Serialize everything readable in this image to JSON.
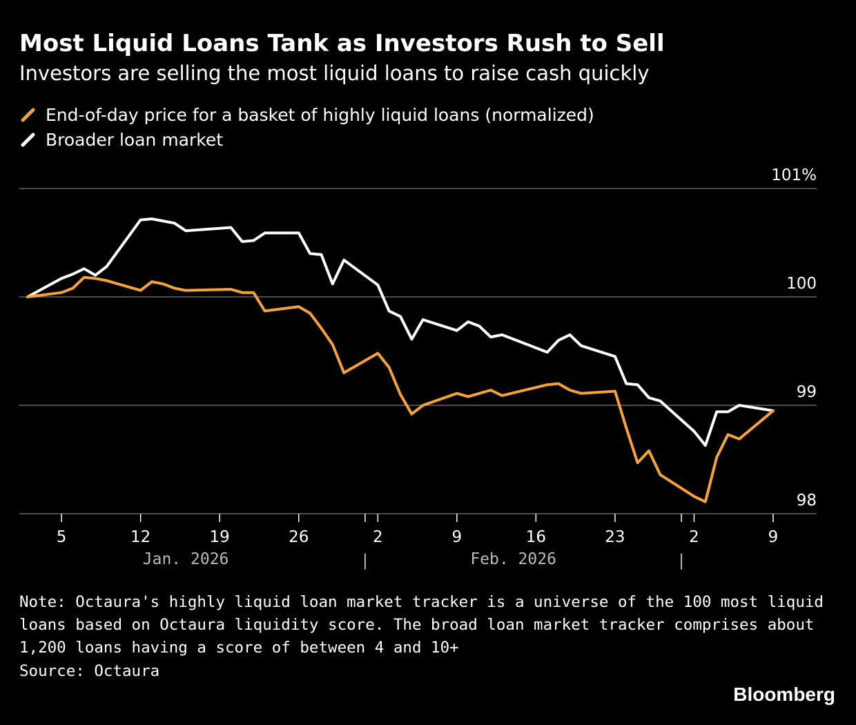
{
  "header": {
    "title": "Most Liquid Loans Tank as Investors Rush to Sell",
    "subtitle": "Investors are selling the most liquid loans to raise cash quickly"
  },
  "colors": {
    "background": "#000000",
    "liquid_series": "#f7a234",
    "broad_series": "#ffffff",
    "grid": "#666666",
    "month_label": "#bbbbbb"
  },
  "footer": {
    "note": "Note: Octaura's highly liquid loan market tracker is a universe of the 100 most liquid loans based on Octaura liquidity score. The broad loan market tracker comprises about 1,200 loans having a score of between 4 and 10+",
    "source": "Source: Octaura",
    "brand": "Bloomberg"
  },
  "chart_data": {
    "type": "line",
    "title": "Most Liquid Loans Tank as Investors Rush to Sell",
    "subtitle": "Investors are selling the most liquid loans to raise cash quickly",
    "ylim": [
      98,
      101
    ],
    "grid": true,
    "y_ticks": [
      {
        "value": 101,
        "label": "101%"
      },
      {
        "value": 100,
        "label": "100"
      },
      {
        "value": 99,
        "label": "99"
      },
      {
        "value": 98,
        "label": "98"
      }
    ],
    "x_range": [
      "2026-01-02",
      "2026-03-11"
    ],
    "x_ticks": [
      {
        "date": "2026-01-05",
        "label": "5"
      },
      {
        "date": "2026-01-12",
        "label": "12"
      },
      {
        "date": "2026-01-19",
        "label": "19"
      },
      {
        "date": "2026-01-26",
        "label": "26"
      },
      {
        "date": "2026-02-02",
        "label": "2"
      },
      {
        "date": "2026-02-09",
        "label": "9"
      },
      {
        "date": "2026-02-16",
        "label": "16"
      },
      {
        "date": "2026-02-23",
        "label": "23"
      },
      {
        "date": "2026-03-02",
        "label": "2"
      },
      {
        "date": "2026-03-09",
        "label": "9"
      }
    ],
    "month_separators": [
      "2026-02-01",
      "2026-03-01"
    ],
    "month_labels": [
      {
        "label": "Jan. 2026",
        "center": "2026-01-16"
      },
      {
        "label": "Feb. 2026",
        "center": "2026-02-14"
      }
    ],
    "legend_position": "top-left",
    "series": [
      {
        "name": "End-of-day price for a basket of highly liquid loans (normalized)",
        "color": "#f7a234",
        "points": [
          {
            "x": "2026-01-02",
            "y": 100.0
          },
          {
            "x": "2026-01-05",
            "y": 100.04
          },
          {
            "x": "2026-01-06",
            "y": 100.08
          },
          {
            "x": "2026-01-07",
            "y": 100.18
          },
          {
            "x": "2026-01-08",
            "y": 100.17
          },
          {
            "x": "2026-01-09",
            "y": 100.15
          },
          {
            "x": "2026-01-12",
            "y": 100.06
          },
          {
            "x": "2026-01-13",
            "y": 100.14
          },
          {
            "x": "2026-01-14",
            "y": 100.12
          },
          {
            "x": "2026-01-15",
            "y": 100.08
          },
          {
            "x": "2026-01-16",
            "y": 100.06
          },
          {
            "x": "2026-01-20",
            "y": 100.07
          },
          {
            "x": "2026-01-21",
            "y": 100.04
          },
          {
            "x": "2026-01-22",
            "y": 100.04
          },
          {
            "x": "2026-01-23",
            "y": 99.87
          },
          {
            "x": "2026-01-26",
            "y": 99.91
          },
          {
            "x": "2026-01-27",
            "y": 99.85
          },
          {
            "x": "2026-01-28",
            "y": 99.71
          },
          {
            "x": "2026-01-29",
            "y": 99.56
          },
          {
            "x": "2026-01-30",
            "y": 99.3
          },
          {
            "x": "2026-02-02",
            "y": 99.48
          },
          {
            "x": "2026-02-03",
            "y": 99.35
          },
          {
            "x": "2026-02-04",
            "y": 99.1
          },
          {
            "x": "2026-02-05",
            "y": 98.92
          },
          {
            "x": "2026-02-06",
            "y": 99.0
          },
          {
            "x": "2026-02-09",
            "y": 99.11
          },
          {
            "x": "2026-02-10",
            "y": 99.08
          },
          {
            "x": "2026-02-11",
            "y": 99.11
          },
          {
            "x": "2026-02-12",
            "y": 99.14
          },
          {
            "x": "2026-02-13",
            "y": 99.09
          },
          {
            "x": "2026-02-17",
            "y": 99.19
          },
          {
            "x": "2026-02-18",
            "y": 99.2
          },
          {
            "x": "2026-02-19",
            "y": 99.14
          },
          {
            "x": "2026-02-20",
            "y": 99.11
          },
          {
            "x": "2026-02-23",
            "y": 99.13
          },
          {
            "x": "2026-02-24",
            "y": 98.79
          },
          {
            "x": "2026-02-25",
            "y": 98.47
          },
          {
            "x": "2026-02-26",
            "y": 98.58
          },
          {
            "x": "2026-02-27",
            "y": 98.36
          },
          {
            "x": "2026-03-02",
            "y": 98.16
          },
          {
            "x": "2026-03-03",
            "y": 98.11
          },
          {
            "x": "2026-03-04",
            "y": 98.52
          },
          {
            "x": "2026-03-05",
            "y": 98.73
          },
          {
            "x": "2026-03-06",
            "y": 98.69
          },
          {
            "x": "2026-03-09",
            "y": 98.95
          }
        ]
      },
      {
        "name": "Broader loan market",
        "color": "#ffffff",
        "points": [
          {
            "x": "2026-01-02",
            "y": 100.0
          },
          {
            "x": "2026-01-05",
            "y": 100.17
          },
          {
            "x": "2026-01-06",
            "y": 100.21
          },
          {
            "x": "2026-01-07",
            "y": 100.26
          },
          {
            "x": "2026-01-08",
            "y": 100.2
          },
          {
            "x": "2026-01-09",
            "y": 100.28
          },
          {
            "x": "2026-01-12",
            "y": 100.71
          },
          {
            "x": "2026-01-13",
            "y": 100.72
          },
          {
            "x": "2026-01-14",
            "y": 100.7
          },
          {
            "x": "2026-01-15",
            "y": 100.68
          },
          {
            "x": "2026-01-16",
            "y": 100.61
          },
          {
            "x": "2026-01-20",
            "y": 100.64
          },
          {
            "x": "2026-01-21",
            "y": 100.51
          },
          {
            "x": "2026-01-22",
            "y": 100.52
          },
          {
            "x": "2026-01-23",
            "y": 100.59
          },
          {
            "x": "2026-01-26",
            "y": 100.59
          },
          {
            "x": "2026-01-27",
            "y": 100.4
          },
          {
            "x": "2026-01-28",
            "y": 100.39
          },
          {
            "x": "2026-01-29",
            "y": 100.12
          },
          {
            "x": "2026-01-30",
            "y": 100.34
          },
          {
            "x": "2026-02-02",
            "y": 100.11
          },
          {
            "x": "2026-02-03",
            "y": 99.87
          },
          {
            "x": "2026-02-04",
            "y": 99.82
          },
          {
            "x": "2026-02-05",
            "y": 99.61
          },
          {
            "x": "2026-02-06",
            "y": 99.79
          },
          {
            "x": "2026-02-09",
            "y": 99.69
          },
          {
            "x": "2026-02-10",
            "y": 99.77
          },
          {
            "x": "2026-02-11",
            "y": 99.73
          },
          {
            "x": "2026-02-12",
            "y": 99.63
          },
          {
            "x": "2026-02-13",
            "y": 99.65
          },
          {
            "x": "2026-02-17",
            "y": 99.49
          },
          {
            "x": "2026-02-18",
            "y": 99.6
          },
          {
            "x": "2026-02-19",
            "y": 99.65
          },
          {
            "x": "2026-02-20",
            "y": 99.55
          },
          {
            "x": "2026-02-23",
            "y": 99.45
          },
          {
            "x": "2026-02-24",
            "y": 99.2
          },
          {
            "x": "2026-02-25",
            "y": 99.19
          },
          {
            "x": "2026-02-26",
            "y": 99.07
          },
          {
            "x": "2026-02-27",
            "y": 99.04
          },
          {
            "x": "2026-03-02",
            "y": 98.76
          },
          {
            "x": "2026-03-03",
            "y": 98.63
          },
          {
            "x": "2026-03-04",
            "y": 98.94
          },
          {
            "x": "2026-03-05",
            "y": 98.94
          },
          {
            "x": "2026-03-06",
            "y": 99.0
          },
          {
            "x": "2026-03-09",
            "y": 98.95
          }
        ]
      }
    ]
  }
}
